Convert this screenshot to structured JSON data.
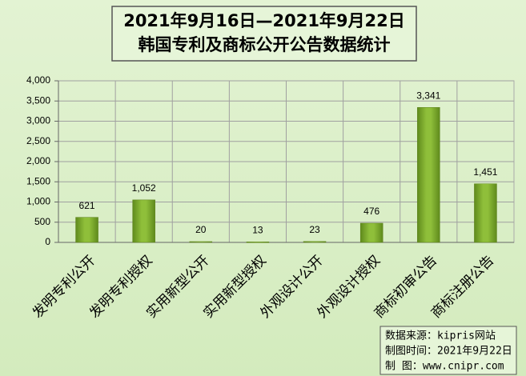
{
  "chart_data": {
    "type": "bar",
    "title": [
      "2021年9月16日—2021年9月22日",
      "韩国专利及商标公开公告数据统计"
    ],
    "categories": [
      "发明专利公开",
      "发明专利授权",
      "实用新型公开",
      "实用新型授权",
      "外观设计公开",
      "外观设计授权",
      "商标初审公告",
      "商标注册公告"
    ],
    "values": [
      621,
      1052,
      20,
      13,
      23,
      476,
      3341,
      1451
    ],
    "value_labels": [
      "621",
      "1,052",
      "20",
      "13",
      "23",
      "476",
      "3,341",
      "1,451"
    ],
    "color": "#8fbf3a",
    "ylim": [
      0,
      4000
    ],
    "yticks": [
      0,
      500,
      {
        "value": 1000,
        "label": "1,000"
      },
      {
        "value": 1500,
        "label": "1,500"
      },
      {
        "value": 2000,
        "label": "2,000"
      },
      {
        "value": 2500,
        "label": "2,500"
      },
      {
        "value": 3000,
        "label": "3,000"
      },
      {
        "value": 3500,
        "label": "3,500"
      },
      {
        "value": 4000,
        "label": "4,000"
      }
    ],
    "grid": true,
    "source": [
      "数据来源：kipris网站",
      "制图时间：2021年9月22日",
      "制    图：www.cnipr.com"
    ]
  }
}
